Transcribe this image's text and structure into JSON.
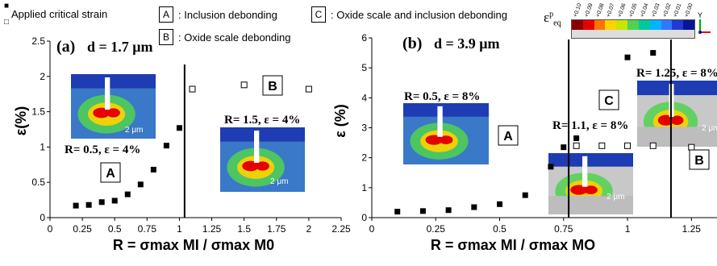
{
  "legend": {
    "filled_marker": "■",
    "open_marker": "□",
    "filled_label": "Applied critical strain",
    "box_a": "A",
    "box_a_text": ": Inclusion debonding",
    "box_b": "B",
    "box_b_text": ": Oxide scale debonding",
    "box_c": "C",
    "box_c_text": ": Oxide scale and inclusion debonding"
  },
  "colorbar": {
    "symbol": "ε",
    "sup": "p",
    "sub": "eq",
    "ticks": [
      "+0.10",
      "+0.09",
      "+0.08",
      "+0.07",
      "+0.06",
      "+0.05",
      "+0.04",
      "+0.03",
      "+0.02",
      "+0.01",
      "+0.00"
    ],
    "colors": [
      "#8b0000",
      "#e60000",
      "#ff7300",
      "#ffd200",
      "#c8e600",
      "#50d250",
      "#00c8a0",
      "#00b4ff",
      "#3278ff",
      "#1e3cd2",
      "#0a1496"
    ],
    "axis_y": "Y",
    "axis_z": "Z"
  },
  "chart_data": [
    {
      "type": "scatter",
      "panel_label": "(a)",
      "title": "d = 1.7 μm",
      "ylabel": "ε(%)",
      "xlabel": "R = σmax_MI / σmax_M0",
      "xlim": [
        0,
        2.25
      ],
      "ylim": [
        0,
        2.5
      ],
      "x_ticks": [
        "0",
        "0.25",
        "0.5",
        "0.75",
        "1",
        "1.25",
        "1.5",
        "1.75",
        "2",
        "2.25"
      ],
      "y_ticks": [
        "0",
        "0.5",
        "1",
        "1.5",
        "2",
        "2.5"
      ],
      "series": [
        {
          "name": "Applied critical strain",
          "marker": "filled_square",
          "x": [
            0.2,
            0.3,
            0.4,
            0.5,
            0.6,
            0.7,
            0.8,
            0.9,
            1.0
          ],
          "y": [
            0.17,
            0.18,
            0.22,
            0.24,
            0.33,
            0.47,
            0.68,
            1.02,
            1.27
          ]
        },
        {
          "marker": "open_square",
          "x": [
            1.1,
            1.5,
            2.0
          ],
          "y": [
            1.82,
            1.88,
            1.82
          ]
        }
      ],
      "divider_x": 1.04,
      "labels": [
        "A",
        "B"
      ],
      "insets": [
        {
          "caption": "R= 0.5, ε = 4%",
          "scale_bar": "2 μm"
        },
        {
          "caption": "R= 1.5, ε = 4%",
          "scale_bar": "2 μm"
        }
      ]
    },
    {
      "type": "scatter",
      "panel_label": "(b)",
      "title": "d = 3.9 μm",
      "ylabel": "ε (%)",
      "xlabel": "R = σmax_MI / σmax_MO",
      "xlim": [
        0,
        1.35
      ],
      "ylim": [
        0,
        6
      ],
      "x_ticks": [
        "0",
        "0.25",
        "0.5",
        "0.75",
        "1",
        "1.25"
      ],
      "y_ticks": [
        "0",
        "1",
        "2",
        "3",
        "4",
        "5",
        "6"
      ],
      "series": [
        {
          "name": "Applied critical strain",
          "marker": "filled_square",
          "x": [
            0.1,
            0.2,
            0.3,
            0.4,
            0.5,
            0.6,
            0.7,
            0.75,
            0.8,
            0.9,
            1.0,
            1.1
          ],
          "y": [
            0.2,
            0.22,
            0.25,
            0.35,
            0.45,
            0.75,
            1.7,
            2.35,
            2.65,
            3.85,
            5.35,
            5.5
          ]
        },
        {
          "marker": "open_square",
          "x": [
            0.8,
            0.9,
            1.0,
            1.1,
            1.25
          ],
          "y": [
            2.4,
            2.4,
            2.4,
            2.4,
            2.35
          ]
        }
      ],
      "dividers_x": [
        0.77,
        1.17
      ],
      "labels": [
        "A",
        "C",
        "B"
      ],
      "insets": [
        {
          "caption": "R= 0.5, ε = 8%"
        },
        {
          "caption": "R= 1.1, ε = 8%",
          "scale_bar": "2 μm"
        },
        {
          "caption": "R= 1.25, ε = 8%",
          "scale_bar": "2 μm"
        }
      ]
    }
  ]
}
